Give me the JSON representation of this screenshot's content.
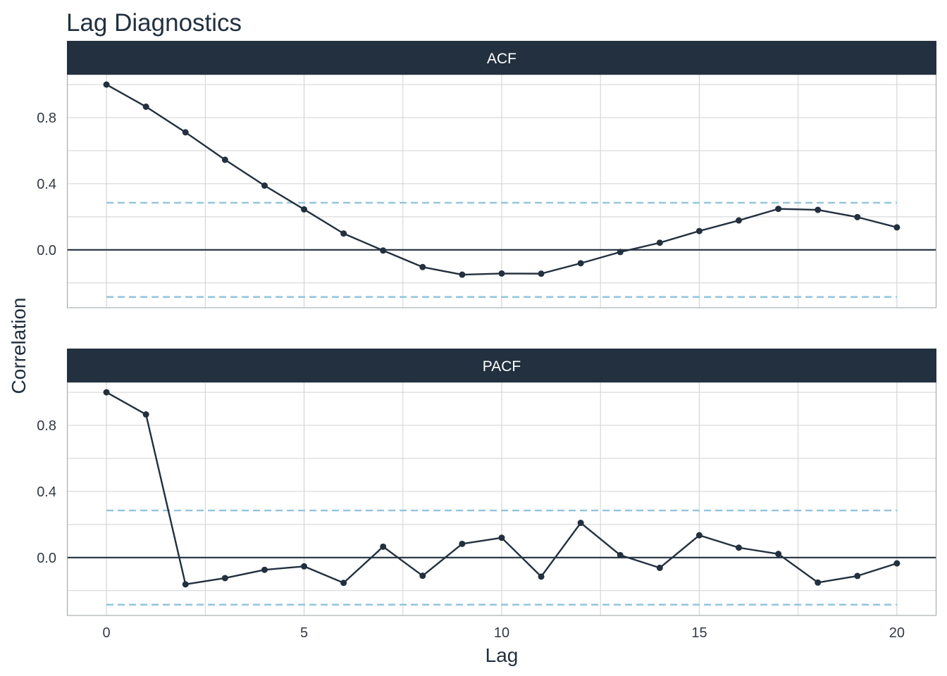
{
  "chart_data": {
    "type": "line",
    "title": "Lag Diagnostics",
    "xlabel": "Lag",
    "ylabel": "Correlation",
    "xlim": [
      -1,
      21
    ],
    "ylim": [
      -0.35,
      1.06
    ],
    "xticks": [
      "0",
      "5",
      "10",
      "15",
      "20"
    ],
    "yticks": [
      "0.0",
      "0.4",
      "0.8"
    ],
    "grid": true,
    "colors": {
      "line": "#22303f",
      "threshold": "#93c4dc",
      "strip": "#22303f",
      "grid": "#d2d2d2"
    },
    "panels": [
      {
        "label": "ACF",
        "threshold": 0.285,
        "x": [
          0,
          1,
          2,
          3,
          4,
          5,
          6,
          7,
          8,
          9,
          10,
          11,
          12,
          13,
          14,
          15,
          16,
          17,
          18,
          19,
          20
        ],
        "y": [
          1.0,
          0.866,
          0.711,
          0.545,
          0.389,
          0.245,
          0.099,
          -0.004,
          -0.104,
          -0.15,
          -0.143,
          -0.144,
          -0.081,
          -0.013,
          0.043,
          0.114,
          0.178,
          0.248,
          0.242,
          0.198,
          0.136
        ]
      },
      {
        "label": "PACF",
        "threshold": 0.285,
        "x": [
          0,
          1,
          2,
          3,
          4,
          5,
          6,
          7,
          8,
          9,
          10,
          11,
          12,
          13,
          14,
          15,
          16,
          17,
          18,
          19,
          20
        ],
        "y": [
          1.0,
          0.866,
          -0.162,
          -0.124,
          -0.074,
          -0.053,
          -0.153,
          0.066,
          -0.11,
          0.083,
          0.12,
          -0.115,
          0.21,
          0.015,
          -0.062,
          0.135,
          0.06,
          0.022,
          -0.151,
          -0.111,
          -0.035
        ]
      }
    ]
  }
}
